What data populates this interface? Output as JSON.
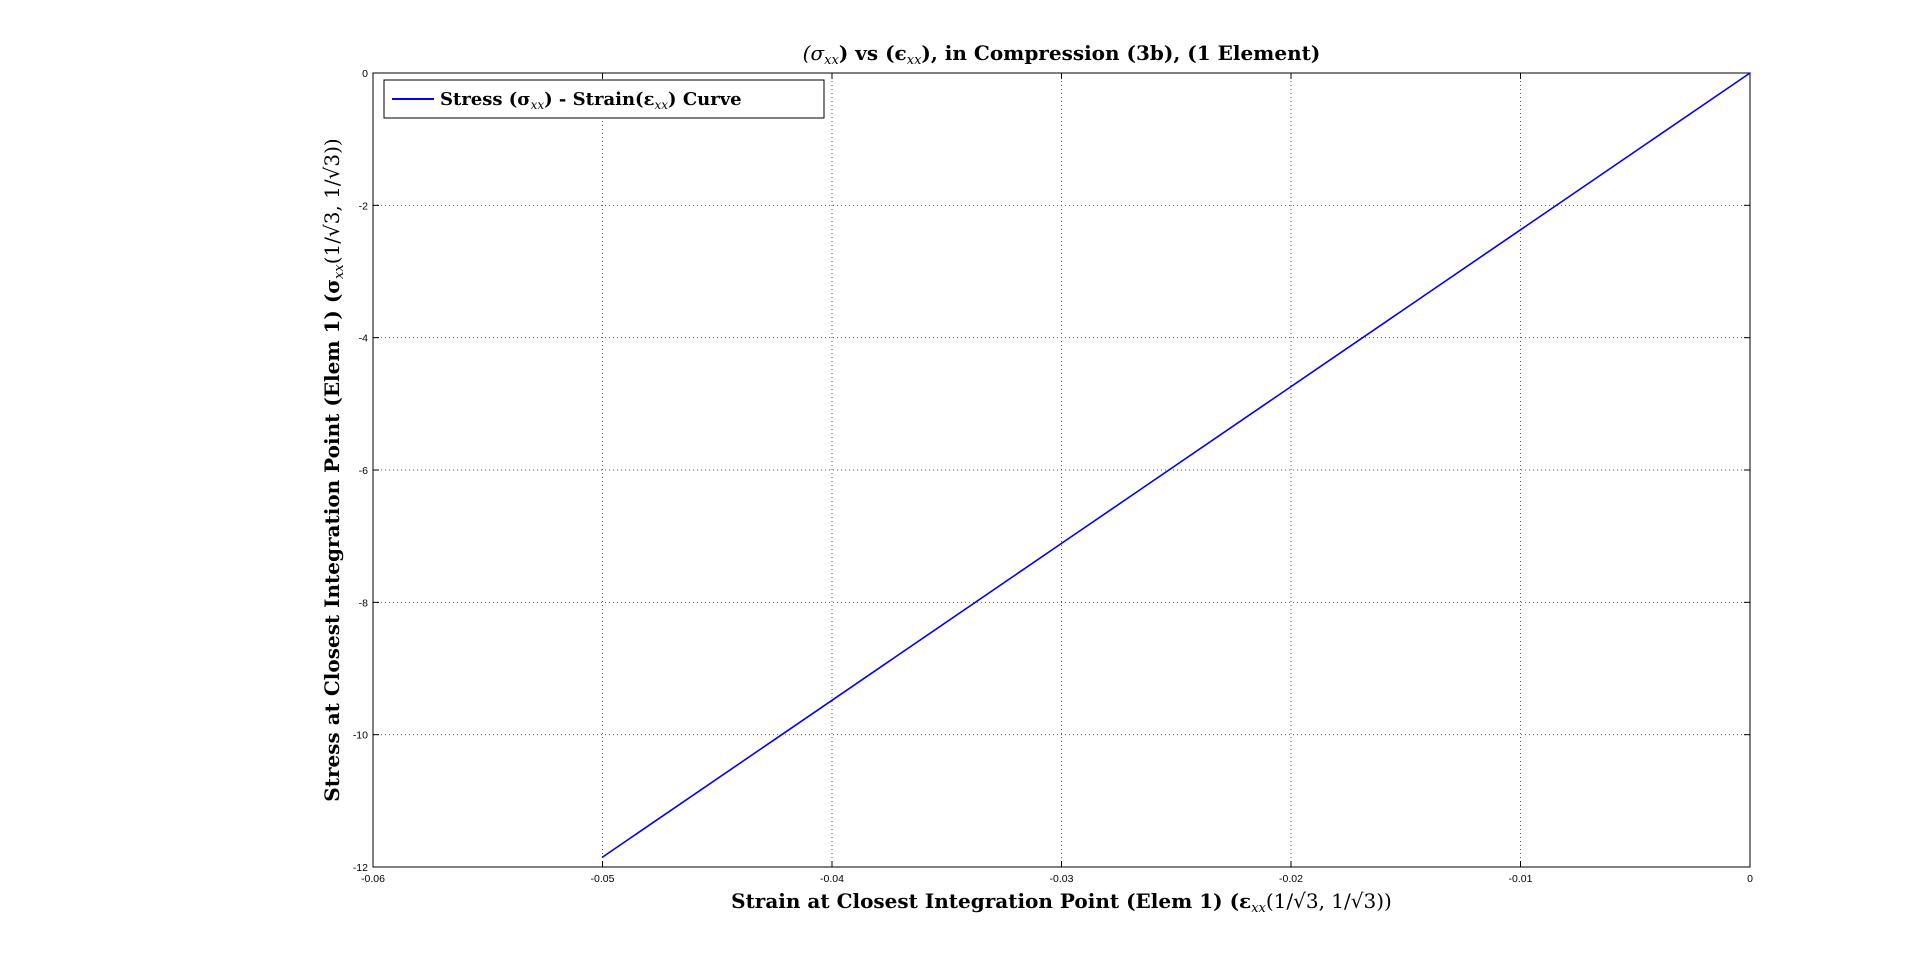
{
  "chart_data": {
    "type": "line",
    "title": "(σxx) vs (εxx), in Compression (3b), (1 Element)",
    "title_parts": {
      "open1": "(σ",
      "sub1": "xx",
      "mid": ") vs (ϵ",
      "sub2": "xx",
      "rest": "), in Compression (3b), (1 Element)"
    },
    "xlabel": "Strain at Closest Integration Point (Elem 1) (εxx(1/√3, 1/√3))",
    "xlabel_parts": {
      "text": "Strain at Closest Integration Point (Elem 1) (ε",
      "sub": "xx",
      "args": "(1/√3, 1/√3))"
    },
    "ylabel": "Stress at Closest Integration Point (Elem 1) (σxx(1/√3, 1/√3))",
    "ylabel_parts": {
      "text": "Stress at Closest Integration Point (Elem 1) (σ",
      "sub": "xx",
      "args": "(1/√3, 1/√3))"
    },
    "xlim": [
      -0.06,
      0
    ],
    "ylim": [
      -12,
      0
    ],
    "xticks": [
      -0.06,
      -0.05,
      -0.04,
      -0.03,
      -0.02,
      -0.01,
      0
    ],
    "xtick_labels": [
      "-0.06",
      "-0.05",
      "-0.04",
      "-0.03",
      "-0.02",
      "-0.01",
      "0"
    ],
    "yticks": [
      -12,
      -10,
      -8,
      -6,
      -4,
      -2,
      0
    ],
    "ytick_labels": [
      "-12",
      "-10",
      "-8",
      "-6",
      "-4",
      "-2",
      "0"
    ],
    "grid": true,
    "legend_position": "top-left",
    "series": [
      {
        "name": "Stress (σxx) - Strain(εxx) Curve",
        "legend_parts": {
          "a": "Stress (σ",
          "sub1": "xx",
          "b": ") - Strain(ε",
          "sub2": "xx",
          "c": ") Curve"
        },
        "color": "#0000ff",
        "x": [
          -0.05,
          -0.04,
          -0.03,
          -0.02,
          -0.01,
          0
        ],
        "y": [
          -11.85,
          -9.48,
          -7.11,
          -4.74,
          -2.37,
          0
        ]
      }
    ]
  }
}
